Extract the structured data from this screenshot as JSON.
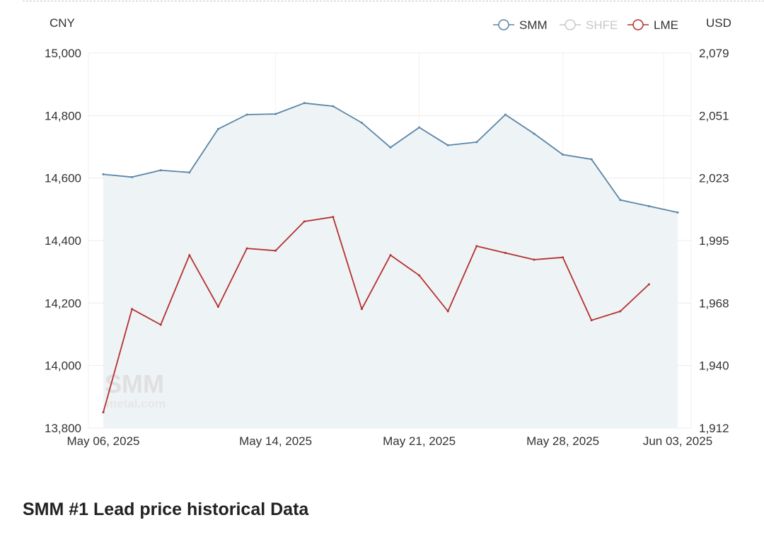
{
  "chart_data": {
    "type": "line",
    "left_axis_unit": "CNY",
    "right_axis_unit": "USD",
    "left_ticks": [
      "15,000",
      "14,800",
      "14,600",
      "14,400",
      "14,200",
      "14,000",
      "13,800"
    ],
    "left_ylim": [
      13800,
      15000
    ],
    "right_ticks": [
      "2,079",
      "2,051",
      "2,023",
      "1,995",
      "1,968",
      "1,940",
      "1,912"
    ],
    "right_ylim": [
      1912,
      2079
    ],
    "x_tick_labels": [
      "May 06, 2025",
      "May 14, 2025",
      "May 21, 2025",
      "May 28, 2025",
      "Jun 03, 2025"
    ],
    "x_tick_index": [
      0,
      6,
      11,
      16,
      20
    ],
    "legend_position": "top-right",
    "grid": true,
    "series": [
      {
        "name": "SMM",
        "axis": "left",
        "visible": true,
        "color": "#5a85a8",
        "area_fill": "#eef3f6",
        "values": [
          14612,
          14603,
          14625,
          14618,
          14757,
          14803,
          14805,
          14840,
          14830,
          14777,
          14698,
          14762,
          14705,
          14715,
          14803,
          14742,
          14675,
          14660,
          14530,
          14510,
          14490
        ]
      },
      {
        "name": "SHFE",
        "axis": "left",
        "visible": false,
        "color": "#c8c8c8",
        "values": []
      },
      {
        "name": "LME",
        "axis": "right",
        "visible": true,
        "color": "#b5312f",
        "values": [
          1919,
          1965,
          1958,
          1989,
          1966,
          1992,
          1991,
          2004,
          2006,
          1965,
          1989,
          1980,
          1964,
          1993,
          1990,
          1987,
          1988,
          1960,
          1964,
          1976
        ]
      }
    ]
  },
  "watermark": {
    "text_main": "SMM",
    "text_sub": "metal.com"
  },
  "section": {
    "title": "SMM #1 Lead price historical Data"
  }
}
